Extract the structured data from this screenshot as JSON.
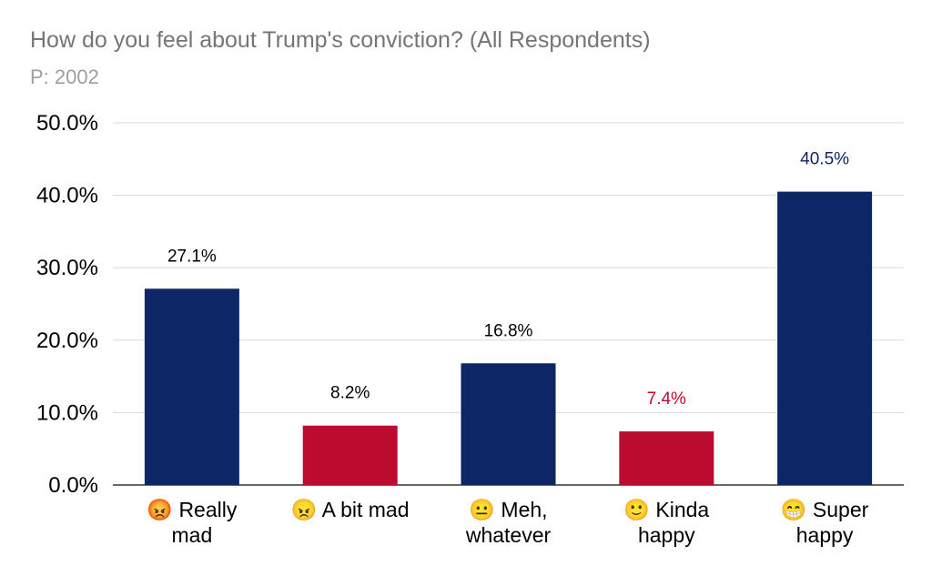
{
  "chart_data": {
    "type": "bar",
    "title": "How do you feel about Trump's conviction? (All Respondents)",
    "subtitle": "P: 2002",
    "xlabel": "",
    "ylabel": "",
    "ylim": [
      0,
      50
    ],
    "y_ticks": [
      "0.0%",
      "10.0%",
      "20.0%",
      "30.0%",
      "40.0%",
      "50.0%"
    ],
    "y_tick_values": [
      0,
      10,
      20,
      30,
      40,
      50
    ],
    "grid": true,
    "legend": "none",
    "categories": [
      {
        "emoji": "😡",
        "lines": [
          "Really",
          "mad"
        ]
      },
      {
        "emoji": "😠",
        "lines": [
          "A bit mad"
        ]
      },
      {
        "emoji": "😐",
        "lines": [
          "Meh,",
          "whatever"
        ]
      },
      {
        "emoji": "🙂",
        "lines": [
          "Kinda",
          "happy"
        ]
      },
      {
        "emoji": "😁",
        "lines": [
          "Super",
          "happy"
        ]
      }
    ],
    "values": [
      27.1,
      8.2,
      16.8,
      7.4,
      40.5
    ],
    "data_labels": [
      "27.1%",
      "8.2%",
      "16.8%",
      "7.4%",
      "40.5%"
    ],
    "bar_colors": [
      "#0d2665",
      "#bb0c2f",
      "#0d2665",
      "#bb0c2f",
      "#0d2665"
    ],
    "label_colors": [
      "#000000",
      "#000000",
      "#000000",
      "#bb0c2f",
      "#0d2665"
    ]
  }
}
